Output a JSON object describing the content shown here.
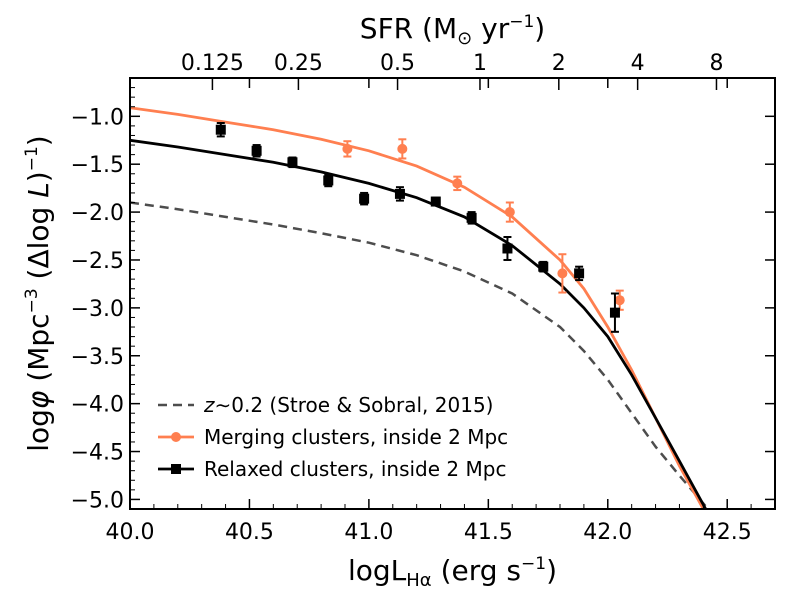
{
  "chart_data": {
    "type": "line",
    "title": "",
    "xlabel": "logL_Hα (erg s^-1)",
    "ylabel": "logφ (Mpc^-3 (Δlog L)^-1)",
    "top_axis_label": "SFR (M_⊙ yr^-1)",
    "xlim": [
      40.0,
      42.7
    ],
    "ylim": [
      -5.1,
      -0.6
    ],
    "x_ticks": [
      40.0,
      40.5,
      41.0,
      41.5,
      42.0,
      42.5
    ],
    "x_tick_labels": [
      "40.0",
      "40.5",
      "41.0",
      "41.5",
      "42.0",
      "42.5"
    ],
    "y_ticks": [
      -1.0,
      -1.5,
      -2.0,
      -2.5,
      -3.0,
      -3.5,
      -4.0,
      -4.5,
      -5.0
    ],
    "y_tick_labels": [
      "−1.0",
      "−1.5",
      "−2.0",
      "−2.5",
      "−3.0",
      "−3.5",
      "−4.0",
      "−4.5",
      "−5.0"
    ],
    "top_ticks": [
      {
        "label": "0.125",
        "x": 40.345
      },
      {
        "label": "0.25",
        "x": 40.705
      },
      {
        "label": "0.5",
        "x": 41.12
      },
      {
        "label": "1",
        "x": 41.465
      },
      {
        "label": "2",
        "x": 41.795
      },
      {
        "label": "4",
        "x": 42.125
      },
      {
        "label": "8",
        "x": 42.455
      }
    ],
    "grid": false,
    "legend_position": "bottom-left",
    "series": [
      {
        "name": "z~0.2 (Stroe & Sobral, 2015)",
        "style": "dashed",
        "color": "#4d4d4d",
        "x": [
          40.0,
          40.2,
          40.4,
          40.6,
          40.8,
          41.0,
          41.2,
          41.4,
          41.6,
          41.8,
          41.9,
          42.0,
          42.1,
          42.2,
          42.3,
          42.42
        ],
        "y": [
          -1.9,
          -1.97,
          -2.05,
          -2.13,
          -2.22,
          -2.32,
          -2.45,
          -2.62,
          -2.85,
          -3.2,
          -3.45,
          -3.75,
          -4.1,
          -4.45,
          -4.75,
          -5.1
        ]
      },
      {
        "name": "Merging clusters, inside 2 Mpc fit",
        "style": "solid",
        "color": "#ff7f50",
        "x": [
          40.0,
          40.2,
          40.4,
          40.6,
          40.8,
          41.0,
          41.2,
          41.4,
          41.6,
          41.8,
          41.9,
          42.0,
          42.1,
          42.2,
          42.3,
          42.4
        ],
        "y": [
          -0.91,
          -0.98,
          -1.06,
          -1.14,
          -1.24,
          -1.36,
          -1.52,
          -1.74,
          -2.05,
          -2.5,
          -2.8,
          -3.2,
          -3.65,
          -4.15,
          -4.65,
          -5.1
        ]
      },
      {
        "name": "Relaxed clusters, inside 2 Mpc fit",
        "style": "solid",
        "color": "#000000",
        "x": [
          40.0,
          40.2,
          40.4,
          40.6,
          40.8,
          41.0,
          41.2,
          41.4,
          41.6,
          41.8,
          41.9,
          42.0,
          42.1,
          42.2,
          42.3,
          42.41
        ],
        "y": [
          -1.25,
          -1.32,
          -1.4,
          -1.48,
          -1.58,
          -1.7,
          -1.85,
          -2.05,
          -2.35,
          -2.75,
          -3.0,
          -3.3,
          -3.7,
          -4.15,
          -4.6,
          -5.1
        ]
      },
      {
        "name": "Merging clusters, inside 2 Mpc",
        "style": "points",
        "marker": "circle",
        "color": "#ff7f50",
        "x": [
          40.91,
          41.14,
          41.37,
          41.59,
          41.81,
          42.05
        ],
        "y": [
          -1.34,
          -1.34,
          -1.7,
          -2.0,
          -2.64,
          -2.92
        ],
        "err": [
          0.08,
          0.1,
          0.07,
          0.1,
          0.2,
          0.1
        ]
      },
      {
        "name": "Relaxed clusters, inside 2 Mpc",
        "style": "points",
        "marker": "square",
        "color": "#000000",
        "x": [
          40.38,
          40.53,
          40.68,
          40.83,
          40.98,
          41.13,
          41.28,
          41.43,
          41.58,
          41.73,
          41.88,
          42.03
        ],
        "y": [
          -1.14,
          -1.36,
          -1.48,
          -1.67,
          -1.86,
          -1.81,
          -1.89,
          -2.06,
          -2.38,
          -2.57,
          -2.64,
          -3.05
        ],
        "err": [
          0.07,
          0.06,
          0.05,
          0.06,
          0.06,
          0.07,
          0.04,
          0.06,
          0.12,
          0.05,
          0.07,
          0.2
        ]
      }
    ],
    "legend_entries": [
      {
        "text": "z~0.2 (Stroe & Sobral, 2015)",
        "kind": "dashed",
        "color": "#4d4d4d"
      },
      {
        "text": "Merging clusters, inside 2 Mpc",
        "kind": "circle",
        "color": "#ff7f50"
      },
      {
        "text": "Relaxed clusters, inside 2 Mpc",
        "kind": "square",
        "color": "#000000"
      }
    ]
  }
}
